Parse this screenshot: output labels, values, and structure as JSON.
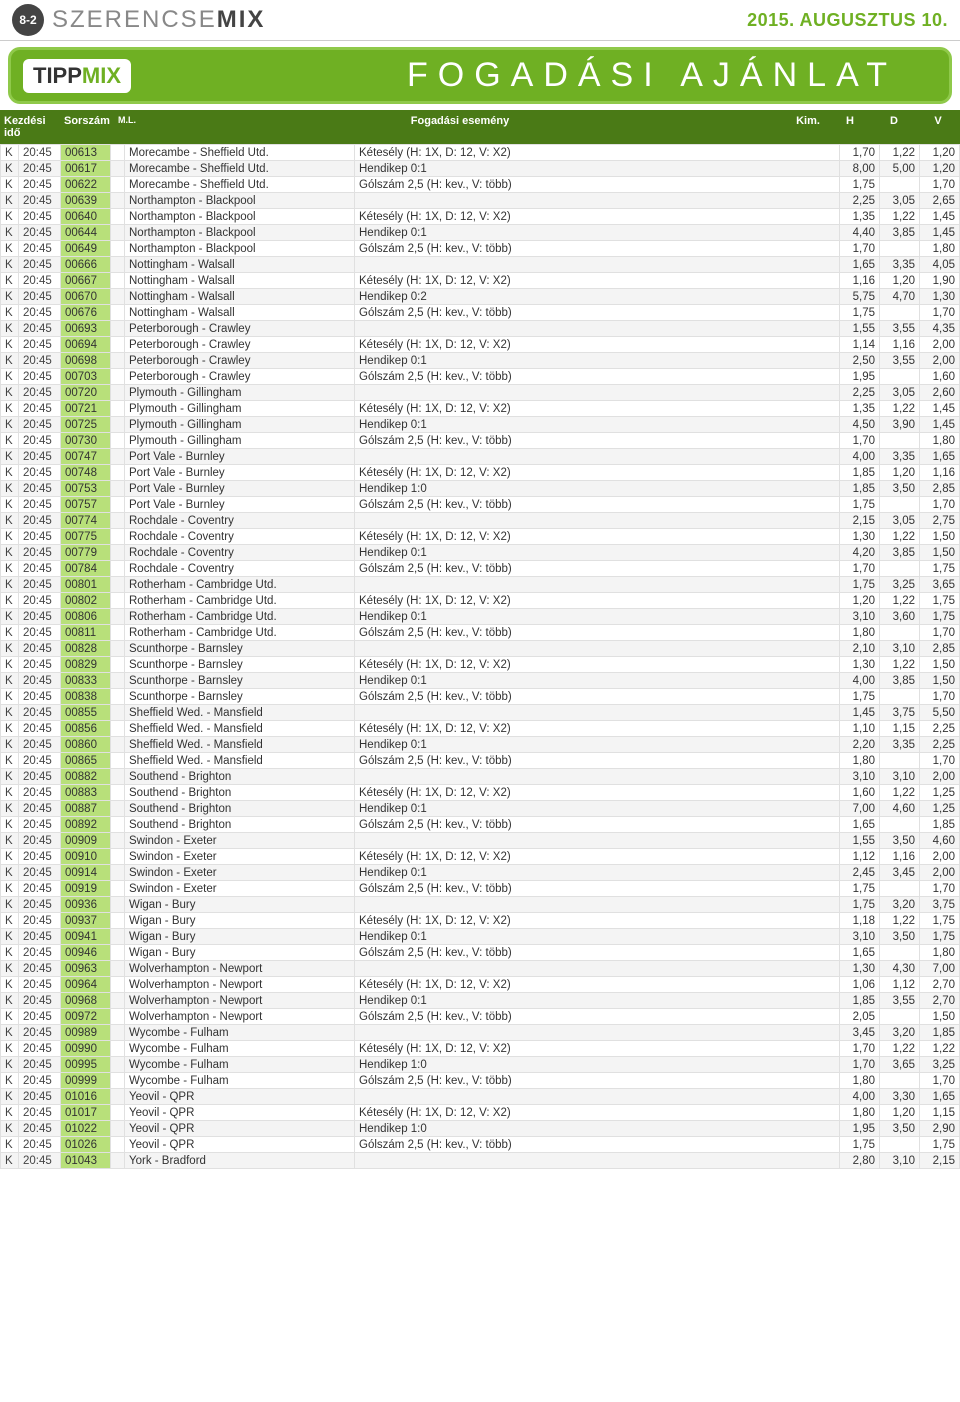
{
  "header": {
    "page_num": "8-2",
    "brand_light": "SZERENCSE",
    "brand_bold": "MIX",
    "date": "2015. AUGUSZTUS 10."
  },
  "green": {
    "tipp": "TIPP",
    "mix": "MIX",
    "title": "FOGADÁSI AJÁNLAT"
  },
  "cols": {
    "time": "Kezdési idő",
    "code": "Sorszám",
    "ml": "M.L.",
    "event": "Fogadási esemény",
    "kim": "Kim.",
    "h": "H",
    "d": "D",
    "v": "V"
  },
  "rows": [
    {
      "d": "K",
      "t": "20:45",
      "c": "00613",
      "e": "Morecambe - Sheffield Utd.",
      "x": "Kétesély (H: 1X, D: 12, V: X2)",
      "h": "1,70",
      "dd": "1,22",
      "v": "1,20"
    },
    {
      "d": "K",
      "t": "20:45",
      "c": "00617",
      "e": "Morecambe - Sheffield Utd.",
      "x": "Hendikep 0:1",
      "h": "8,00",
      "dd": "5,00",
      "v": "1,20"
    },
    {
      "d": "K",
      "t": "20:45",
      "c": "00622",
      "e": "Morecambe - Sheffield Utd.",
      "x": "Gólszám 2,5 (H: kev., V: több)",
      "h": "1,75",
      "dd": "",
      "v": "1,70"
    },
    {
      "d": "K",
      "t": "20:45",
      "c": "00639",
      "e": "Northampton - Blackpool",
      "x": "",
      "h": "2,25",
      "dd": "3,05",
      "v": "2,65"
    },
    {
      "d": "K",
      "t": "20:45",
      "c": "00640",
      "e": "Northampton - Blackpool",
      "x": "Kétesély (H: 1X, D: 12, V: X2)",
      "h": "1,35",
      "dd": "1,22",
      "v": "1,45"
    },
    {
      "d": "K",
      "t": "20:45",
      "c": "00644",
      "e": "Northampton - Blackpool",
      "x": "Hendikep 0:1",
      "h": "4,40",
      "dd": "3,85",
      "v": "1,45"
    },
    {
      "d": "K",
      "t": "20:45",
      "c": "00649",
      "e": "Northampton - Blackpool",
      "x": "Gólszám 2,5 (H: kev., V: több)",
      "h": "1,70",
      "dd": "",
      "v": "1,80"
    },
    {
      "d": "K",
      "t": "20:45",
      "c": "00666",
      "e": "Nottingham - Walsall",
      "x": "",
      "h": "1,65",
      "dd": "3,35",
      "v": "4,05"
    },
    {
      "d": "K",
      "t": "20:45",
      "c": "00667",
      "e": "Nottingham - Walsall",
      "x": "Kétesély (H: 1X, D: 12, V: X2)",
      "h": "1,16",
      "dd": "1,20",
      "v": "1,90"
    },
    {
      "d": "K",
      "t": "20:45",
      "c": "00670",
      "e": "Nottingham - Walsall",
      "x": "Hendikep 0:2",
      "h": "5,75",
      "dd": "4,70",
      "v": "1,30"
    },
    {
      "d": "K",
      "t": "20:45",
      "c": "00676",
      "e": "Nottingham - Walsall",
      "x": "Gólszám 2,5 (H: kev., V: több)",
      "h": "1,75",
      "dd": "",
      "v": "1,70"
    },
    {
      "d": "K",
      "t": "20:45",
      "c": "00693",
      "e": "Peterborough - Crawley",
      "x": "",
      "h": "1,55",
      "dd": "3,55",
      "v": "4,35"
    },
    {
      "d": "K",
      "t": "20:45",
      "c": "00694",
      "e": "Peterborough - Crawley",
      "x": "Kétesély (H: 1X, D: 12, V: X2)",
      "h": "1,14",
      "dd": "1,16",
      "v": "2,00"
    },
    {
      "d": "K",
      "t": "20:45",
      "c": "00698",
      "e": "Peterborough - Crawley",
      "x": "Hendikep 0:1",
      "h": "2,50",
      "dd": "3,55",
      "v": "2,00"
    },
    {
      "d": "K",
      "t": "20:45",
      "c": "00703",
      "e": "Peterborough - Crawley",
      "x": "Gólszám 2,5 (H: kev., V: több)",
      "h": "1,95",
      "dd": "",
      "v": "1,60"
    },
    {
      "d": "K",
      "t": "20:45",
      "c": "00720",
      "e": "Plymouth - Gillingham",
      "x": "",
      "h": "2,25",
      "dd": "3,05",
      "v": "2,60"
    },
    {
      "d": "K",
      "t": "20:45",
      "c": "00721",
      "e": "Plymouth - Gillingham",
      "x": "Kétesély (H: 1X, D: 12, V: X2)",
      "h": "1,35",
      "dd": "1,22",
      "v": "1,45"
    },
    {
      "d": "K",
      "t": "20:45",
      "c": "00725",
      "e": "Plymouth - Gillingham",
      "x": "Hendikep 0:1",
      "h": "4,50",
      "dd": "3,90",
      "v": "1,45"
    },
    {
      "d": "K",
      "t": "20:45",
      "c": "00730",
      "e": "Plymouth - Gillingham",
      "x": "Gólszám 2,5 (H: kev., V: több)",
      "h": "1,70",
      "dd": "",
      "v": "1,80"
    },
    {
      "d": "K",
      "t": "20:45",
      "c": "00747",
      "e": "Port Vale - Burnley",
      "x": "",
      "h": "4,00",
      "dd": "3,35",
      "v": "1,65"
    },
    {
      "d": "K",
      "t": "20:45",
      "c": "00748",
      "e": "Port Vale - Burnley",
      "x": "Kétesély (H: 1X, D: 12, V: X2)",
      "h": "1,85",
      "dd": "1,20",
      "v": "1,16"
    },
    {
      "d": "K",
      "t": "20:45",
      "c": "00753",
      "e": "Port Vale - Burnley",
      "x": "Hendikep 1:0",
      "h": "1,85",
      "dd": "3,50",
      "v": "2,85"
    },
    {
      "d": "K",
      "t": "20:45",
      "c": "00757",
      "e": "Port Vale - Burnley",
      "x": "Gólszám 2,5 (H: kev., V: több)",
      "h": "1,75",
      "dd": "",
      "v": "1,70"
    },
    {
      "d": "K",
      "t": "20:45",
      "c": "00774",
      "e": "Rochdale - Coventry",
      "x": "",
      "h": "2,15",
      "dd": "3,05",
      "v": "2,75"
    },
    {
      "d": "K",
      "t": "20:45",
      "c": "00775",
      "e": "Rochdale - Coventry",
      "x": "Kétesély (H: 1X, D: 12, V: X2)",
      "h": "1,30",
      "dd": "1,22",
      "v": "1,50"
    },
    {
      "d": "K",
      "t": "20:45",
      "c": "00779",
      "e": "Rochdale - Coventry",
      "x": "Hendikep 0:1",
      "h": "4,20",
      "dd": "3,85",
      "v": "1,50"
    },
    {
      "d": "K",
      "t": "20:45",
      "c": "00784",
      "e": "Rochdale - Coventry",
      "x": "Gólszám 2,5 (H: kev., V: több)",
      "h": "1,70",
      "dd": "",
      "v": "1,75"
    },
    {
      "d": "K",
      "t": "20:45",
      "c": "00801",
      "e": "Rotherham - Cambridge Utd.",
      "x": "",
      "h": "1,75",
      "dd": "3,25",
      "v": "3,65"
    },
    {
      "d": "K",
      "t": "20:45",
      "c": "00802",
      "e": "Rotherham - Cambridge Utd.",
      "x": "Kétesély (H: 1X, D: 12, V: X2)",
      "h": "1,20",
      "dd": "1,22",
      "v": "1,75"
    },
    {
      "d": "K",
      "t": "20:45",
      "c": "00806",
      "e": "Rotherham - Cambridge Utd.",
      "x": "Hendikep 0:1",
      "h": "3,10",
      "dd": "3,60",
      "v": "1,75"
    },
    {
      "d": "K",
      "t": "20:45",
      "c": "00811",
      "e": "Rotherham - Cambridge Utd.",
      "x": "Gólszám 2,5 (H: kev., V: több)",
      "h": "1,80",
      "dd": "",
      "v": "1,70"
    },
    {
      "d": "K",
      "t": "20:45",
      "c": "00828",
      "e": "Scunthorpe - Barnsley",
      "x": "",
      "h": "2,10",
      "dd": "3,10",
      "v": "2,85"
    },
    {
      "d": "K",
      "t": "20:45",
      "c": "00829",
      "e": "Scunthorpe - Barnsley",
      "x": "Kétesély (H: 1X, D: 12, V: X2)",
      "h": "1,30",
      "dd": "1,22",
      "v": "1,50"
    },
    {
      "d": "K",
      "t": "20:45",
      "c": "00833",
      "e": "Scunthorpe - Barnsley",
      "x": "Hendikep 0:1",
      "h": "4,00",
      "dd": "3,85",
      "v": "1,50"
    },
    {
      "d": "K",
      "t": "20:45",
      "c": "00838",
      "e": "Scunthorpe - Barnsley",
      "x": "Gólszám 2,5 (H: kev., V: több)",
      "h": "1,75",
      "dd": "",
      "v": "1,70"
    },
    {
      "d": "K",
      "t": "20:45",
      "c": "00855",
      "e": "Sheffield Wed. - Mansfield",
      "x": "",
      "h": "1,45",
      "dd": "3,75",
      "v": "5,50"
    },
    {
      "d": "K",
      "t": "20:45",
      "c": "00856",
      "e": "Sheffield Wed. - Mansfield",
      "x": "Kétesély (H: 1X, D: 12, V: X2)",
      "h": "1,10",
      "dd": "1,15",
      "v": "2,25"
    },
    {
      "d": "K",
      "t": "20:45",
      "c": "00860",
      "e": "Sheffield Wed. - Mansfield",
      "x": "Hendikep 0:1",
      "h": "2,20",
      "dd": "3,35",
      "v": "2,25"
    },
    {
      "d": "K",
      "t": "20:45",
      "c": "00865",
      "e": "Sheffield Wed. - Mansfield",
      "x": "Gólszám 2,5 (H: kev., V: több)",
      "h": "1,80",
      "dd": "",
      "v": "1,70"
    },
    {
      "d": "K",
      "t": "20:45",
      "c": "00882",
      "e": "Southend - Brighton",
      "x": "",
      "h": "3,10",
      "dd": "3,10",
      "v": "2,00"
    },
    {
      "d": "K",
      "t": "20:45",
      "c": "00883",
      "e": "Southend - Brighton",
      "x": "Kétesély (H: 1X, D: 12, V: X2)",
      "h": "1,60",
      "dd": "1,22",
      "v": "1,25"
    },
    {
      "d": "K",
      "t": "20:45",
      "c": "00887",
      "e": "Southend - Brighton",
      "x": "Hendikep 0:1",
      "h": "7,00",
      "dd": "4,60",
      "v": "1,25"
    },
    {
      "d": "K",
      "t": "20:45",
      "c": "00892",
      "e": "Southend - Brighton",
      "x": "Gólszám 2,5 (H: kev., V: több)",
      "h": "1,65",
      "dd": "",
      "v": "1,85"
    },
    {
      "d": "K",
      "t": "20:45",
      "c": "00909",
      "e": "Swindon - Exeter",
      "x": "",
      "h": "1,55",
      "dd": "3,50",
      "v": "4,60"
    },
    {
      "d": "K",
      "t": "20:45",
      "c": "00910",
      "e": "Swindon - Exeter",
      "x": "Kétesély (H: 1X, D: 12, V: X2)",
      "h": "1,12",
      "dd": "1,16",
      "v": "2,00"
    },
    {
      "d": "K",
      "t": "20:45",
      "c": "00914",
      "e": "Swindon - Exeter",
      "x": "Hendikep 0:1",
      "h": "2,45",
      "dd": "3,45",
      "v": "2,00"
    },
    {
      "d": "K",
      "t": "20:45",
      "c": "00919",
      "e": "Swindon - Exeter",
      "x": "Gólszám 2,5 (H: kev., V: több)",
      "h": "1,75",
      "dd": "",
      "v": "1,70"
    },
    {
      "d": "K",
      "t": "20:45",
      "c": "00936",
      "e": "Wigan - Bury",
      "x": "",
      "h": "1,75",
      "dd": "3,20",
      "v": "3,75"
    },
    {
      "d": "K",
      "t": "20:45",
      "c": "00937",
      "e": "Wigan - Bury",
      "x": "Kétesély (H: 1X, D: 12, V: X2)",
      "h": "1,18",
      "dd": "1,22",
      "v": "1,75"
    },
    {
      "d": "K",
      "t": "20:45",
      "c": "00941",
      "e": "Wigan - Bury",
      "x": "Hendikep 0:1",
      "h": "3,10",
      "dd": "3,50",
      "v": "1,75"
    },
    {
      "d": "K",
      "t": "20:45",
      "c": "00946",
      "e": "Wigan - Bury",
      "x": "Gólszám 2,5 (H: kev., V: több)",
      "h": "1,65",
      "dd": "",
      "v": "1,80"
    },
    {
      "d": "K",
      "t": "20:45",
      "c": "00963",
      "e": "Wolverhampton - Newport",
      "x": "",
      "h": "1,30",
      "dd": "4,30",
      "v": "7,00"
    },
    {
      "d": "K",
      "t": "20:45",
      "c": "00964",
      "e": "Wolverhampton - Newport",
      "x": "Kétesély (H: 1X, D: 12, V: X2)",
      "h": "1,06",
      "dd": "1,12",
      "v": "2,70"
    },
    {
      "d": "K",
      "t": "20:45",
      "c": "00968",
      "e": "Wolverhampton - Newport",
      "x": "Hendikep 0:1",
      "h": "1,85",
      "dd": "3,55",
      "v": "2,70"
    },
    {
      "d": "K",
      "t": "20:45",
      "c": "00972",
      "e": "Wolverhampton - Newport",
      "x": "Gólszám 2,5 (H: kev., V: több)",
      "h": "2,05",
      "dd": "",
      "v": "1,50"
    },
    {
      "d": "K",
      "t": "20:45",
      "c": "00989",
      "e": "Wycombe - Fulham",
      "x": "",
      "h": "3,45",
      "dd": "3,20",
      "v": "1,85"
    },
    {
      "d": "K",
      "t": "20:45",
      "c": "00990",
      "e": "Wycombe - Fulham",
      "x": "Kétesély (H: 1X, D: 12, V: X2)",
      "h": "1,70",
      "dd": "1,22",
      "v": "1,22"
    },
    {
      "d": "K",
      "t": "20:45",
      "c": "00995",
      "e": "Wycombe - Fulham",
      "x": "Hendikep 1:0",
      "h": "1,70",
      "dd": "3,65",
      "v": "3,25"
    },
    {
      "d": "K",
      "t": "20:45",
      "c": "00999",
      "e": "Wycombe - Fulham",
      "x": "Gólszám 2,5 (H: kev., V: több)",
      "h": "1,80",
      "dd": "",
      "v": "1,70"
    },
    {
      "d": "K",
      "t": "20:45",
      "c": "01016",
      "e": "Yeovil - QPR",
      "x": "",
      "h": "4,00",
      "dd": "3,30",
      "v": "1,65"
    },
    {
      "d": "K",
      "t": "20:45",
      "c": "01017",
      "e": "Yeovil - QPR",
      "x": "Kétesély (H: 1X, D: 12, V: X2)",
      "h": "1,80",
      "dd": "1,20",
      "v": "1,15"
    },
    {
      "d": "K",
      "t": "20:45",
      "c": "01022",
      "e": "Yeovil - QPR",
      "x": "Hendikep 1:0",
      "h": "1,95",
      "dd": "3,50",
      "v": "2,90"
    },
    {
      "d": "K",
      "t": "20:45",
      "c": "01026",
      "e": "Yeovil - QPR",
      "x": "Gólszám 2,5 (H: kev., V: több)",
      "h": "1,75",
      "dd": "",
      "v": "1,75"
    },
    {
      "d": "K",
      "t": "20:45",
      "c": "01043",
      "e": "York - Bradford",
      "x": "",
      "h": "2,80",
      "dd": "3,10",
      "v": "2,15"
    }
  ]
}
